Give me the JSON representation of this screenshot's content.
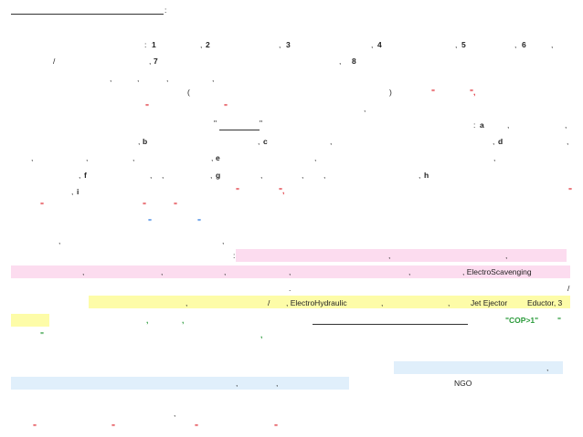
{
  "heading": {
    "colon": ":"
  },
  "line1": {
    "colon": ":",
    "items": [
      "1",
      "2",
      "3",
      "4",
      "5",
      "6"
    ],
    "sep": ","
  },
  "line2": {
    "slash": "/",
    "items": [
      "7",
      "8"
    ],
    "sep": ","
  },
  "line4": {
    "open_paren": "(",
    "close_paren": ")",
    "quote": "\"",
    "quote_comma": "\","
  },
  "line5": {
    "quote": "\""
  },
  "line6": {
    "quote_open": "\"",
    "quote_close": "\"",
    "item_a": "a",
    "colon": ":"
  },
  "line7": {
    "item_b": "b",
    "item_c": "c",
    "item_d": "d"
  },
  "line8": {
    "item_e": "e"
  },
  "line9": {
    "item_f": "f",
    "item_g": "g",
    "item_h": "h"
  },
  "line10": {
    "item_i": "i",
    "quote": "\"",
    "quote_comma": "\","
  },
  "line11": {
    "quote": "\""
  },
  "line12": {
    "quote": "\""
  },
  "line14": {
    "colon": ":"
  },
  "line15": {
    "electroscavenging": ", ElectroScavenging"
  },
  "line16": {
    "dot": ".",
    "slash": "/"
  },
  "line17": {
    "slash": "/",
    "electrohydraulic": ", ElectroHydraulic",
    "jet_ejector": "Jet Ejector",
    "eductor": "Eductor, 3"
  },
  "line18": {
    "green_comma": ",",
    "cop": "\"COP>1\"",
    "quote": "\""
  },
  "line19": {
    "quote": "\"",
    "green_comma": ","
  },
  "line21": {
    "comma": ","
  },
  "line22": {
    "ngo": "NGO"
  },
  "line24": {
    "comma": ","
  },
  "line25": {
    "quote": "\""
  }
}
